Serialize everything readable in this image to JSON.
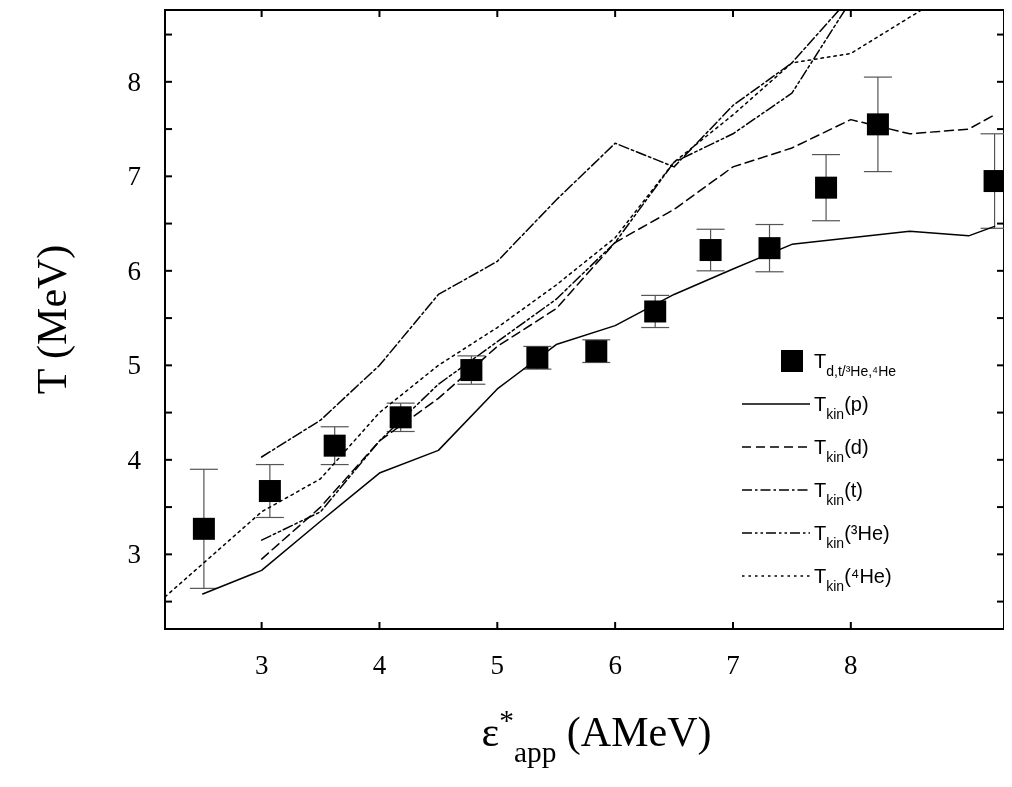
{
  "chart_data": {
    "type": "line",
    "xlabel": "ε$^{*}$$_{app}$ (AMeV)",
    "ylabel": "T (MeV)",
    "xlim": [
      2.18,
      9.3
    ],
    "ylim": [
      2.21,
      8.76
    ],
    "xticks": [
      3,
      4,
      5,
      6,
      7,
      8
    ],
    "yticks": [
      {
        "value": 2.5,
        "label": null
      },
      3,
      {
        "value": 3.5,
        "label": null
      },
      4,
      {
        "value": 4.5,
        "label": null
      },
      5,
      {
        "value": 5.5,
        "label": null
      },
      6,
      {
        "value": 6.5,
        "label": null
      },
      7,
      {
        "value": 7.5,
        "label": null
      },
      8,
      {
        "value": 8.5,
        "label": null
      }
    ],
    "grid": false,
    "legend": "bottom right",
    "series": [
      {
        "type": "scatter",
        "name": "T$_{d,t/³He,⁴He}$",
        "color": "#000000",
        "marker": "square",
        "x": [
          2.51,
          3.07,
          3.62,
          4.18,
          4.78,
          5.34,
          5.84,
          6.34,
          6.81,
          7.31,
          7.79,
          8.23,
          9.22
        ],
        "values": [
          3.27,
          3.67,
          4.15,
          4.45,
          4.95,
          5.08,
          5.15,
          5.57,
          6.22,
          6.24,
          6.88,
          7.55,
          6.95
        ],
        "errors": [
          0.63,
          0.28,
          0.2,
          0.15,
          0.15,
          0.12,
          0.12,
          0.17,
          0.22,
          0.25,
          0.35,
          0.5,
          0.5
        ]
      },
      {
        "name": "T$_{kin}$(p)",
        "color": "#000000",
        "line_style": "solid",
        "x": [
          2.5,
          3,
          3.5,
          4,
          4.5,
          5,
          5.5,
          6,
          6.5,
          7,
          7.5,
          8,
          8.5,
          9,
          9.22
        ],
        "values": [
          2.58,
          2.83,
          3.35,
          3.86,
          4.1,
          4.75,
          5.22,
          5.42,
          5.75,
          6.02,
          6.28,
          6.35,
          6.42,
          6.37,
          6.47
        ]
      },
      {
        "name": "T$_{kin}$(d)",
        "color": "#000000",
        "line_style": "dashed",
        "x": [
          3,
          3.5,
          4,
          4.5,
          5,
          5.5,
          6,
          6.5,
          7,
          7.5,
          8,
          8.5,
          9,
          9.22
        ],
        "values": [
          2.95,
          3.5,
          4.2,
          4.65,
          5.2,
          5.6,
          6.3,
          6.65,
          7.1,
          7.3,
          7.6,
          7.45,
          7.5,
          7.65
        ]
      },
      {
        "name": "T$_{kin}$(t)",
        "color": "#000000",
        "line_style": "dashdot",
        "x": [
          3,
          3.5,
          4,
          4.5,
          5,
          5.5,
          6,
          6.5,
          7,
          7.5,
          7.9
        ],
        "values": [
          4.03,
          4.42,
          5.0,
          5.75,
          6.1,
          6.75,
          7.35,
          7.1,
          7.75,
          8.2,
          8.76
        ]
      },
      {
        "name": "T$_{kin}$(³He)",
        "color": "#000000",
        "line_style": "dashdotdot",
        "x": [
          3,
          3.5,
          4,
          4.5,
          5,
          5.5,
          6,
          6.5,
          7,
          7.5,
          7.95
        ],
        "values": [
          3.15,
          3.45,
          4.2,
          4.8,
          5.25,
          5.7,
          6.3,
          7.15,
          7.45,
          7.88,
          8.76
        ]
      },
      {
        "name": "T$_{kin}$(⁴He)",
        "color": "#000000",
        "line_style": "dotted",
        "x": [
          2.18,
          2.5,
          3,
          3.5,
          4,
          4.5,
          5,
          5.5,
          6,
          6.5,
          7,
          7.5,
          8,
          8.6
        ],
        "values": [
          2.55,
          2.9,
          3.45,
          3.8,
          4.5,
          5.0,
          5.4,
          5.85,
          6.35,
          7.15,
          7.65,
          8.2,
          8.3,
          8.76
        ]
      }
    ]
  }
}
